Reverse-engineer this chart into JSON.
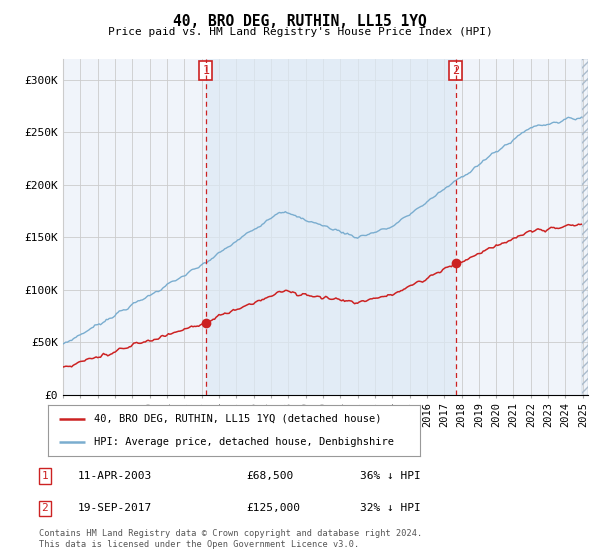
{
  "title": "40, BRO DEG, RUTHIN, LL15 1YQ",
  "subtitle": "Price paid vs. HM Land Registry's House Price Index (HPI)",
  "background_color": "#ffffff",
  "plot_bg_color": "#f0f4fa",
  "grid_color": "#cccccc",
  "hpi_color": "#7aadcf",
  "price_color": "#cc2222",
  "vline_color": "#cc2222",
  "legend1": "40, BRO DEG, RUTHIN, LL15 1YQ (detached house)",
  "legend2": "HPI: Average price, detached house, Denbighshire",
  "note1_label": "1",
  "note1_date": "11-APR-2003",
  "note1_price": "£68,500",
  "note1_hpi": "36% ↓ HPI",
  "note2_label": "2",
  "note2_date": "19-SEP-2017",
  "note2_price": "£125,000",
  "note2_hpi": "32% ↓ HPI",
  "footer": "Contains HM Land Registry data © Crown copyright and database right 2024.\nThis data is licensed under the Open Government Licence v3.0.",
  "ylim": [
    0,
    320000
  ],
  "yticks": [
    0,
    50000,
    100000,
    150000,
    200000,
    250000,
    300000
  ],
  "yticklabels": [
    "£0",
    "£50K",
    "£100K",
    "£150K",
    "£200K",
    "£250K",
    "£300K"
  ],
  "xstart_year": 1995,
  "xend_year": 2025
}
